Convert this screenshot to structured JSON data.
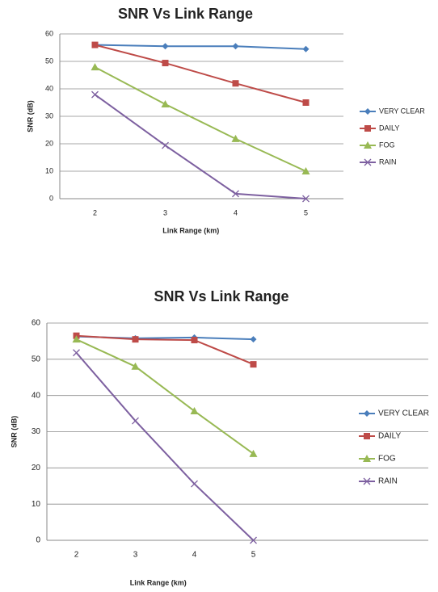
{
  "chart_data": [
    {
      "type": "line",
      "title": "SNR Vs Link Range",
      "x_label": "Link Range (km)",
      "y_label": "SNR (dB)",
      "categories": [
        "2",
        "3",
        "4",
        "5"
      ],
      "series": [
        {
          "name": "VERY CLEAR",
          "color": "#4a7ebb",
          "marker": "diamond",
          "values": [
            56,
            55.5,
            55.5,
            54.5
          ]
        },
        {
          "name": "DAILY",
          "color": "#be4b48",
          "marker": "square",
          "values": [
            56,
            49.4,
            42,
            35
          ]
        },
        {
          "name": "FOG",
          "color": "#98b954",
          "marker": "triangle",
          "values": [
            47.9,
            34.4,
            21.8,
            10
          ]
        },
        {
          "name": "RAIN",
          "color": "#7d60a0",
          "marker": "x",
          "values": [
            37.9,
            19.4,
            1.8,
            0
          ]
        }
      ],
      "ylim": [
        0,
        60
      ],
      "yticks": [
        0,
        10,
        20,
        30,
        40,
        50,
        60
      ],
      "grid": true,
      "legend": "right"
    },
    {
      "type": "line",
      "title": "SNR Vs Link Range",
      "x_label": "Link Range (km)",
      "y_label": "SNR (dB)",
      "categories": [
        "2",
        "3",
        "4",
        "5"
      ],
      "series": [
        {
          "name": "VERY CLEAR",
          "color": "#4a7ebb",
          "marker": "diamond",
          "values": [
            56.3,
            55.8,
            56,
            55.5
          ]
        },
        {
          "name": "DAILY",
          "color": "#be4b48",
          "marker": "square",
          "values": [
            56.5,
            55.5,
            55.3,
            48.6
          ]
        },
        {
          "name": "FOG",
          "color": "#98b954",
          "marker": "triangle",
          "values": [
            55.5,
            48,
            35.7,
            23.9
          ]
        },
        {
          "name": "RAIN",
          "color": "#7d60a0",
          "marker": "x",
          "values": [
            51.8,
            33,
            15.6,
            0
          ]
        }
      ],
      "ylim": [
        0,
        60
      ],
      "yticks": [
        0,
        10,
        20,
        30,
        40,
        50,
        60
      ],
      "grid": true,
      "legend": "right"
    }
  ]
}
